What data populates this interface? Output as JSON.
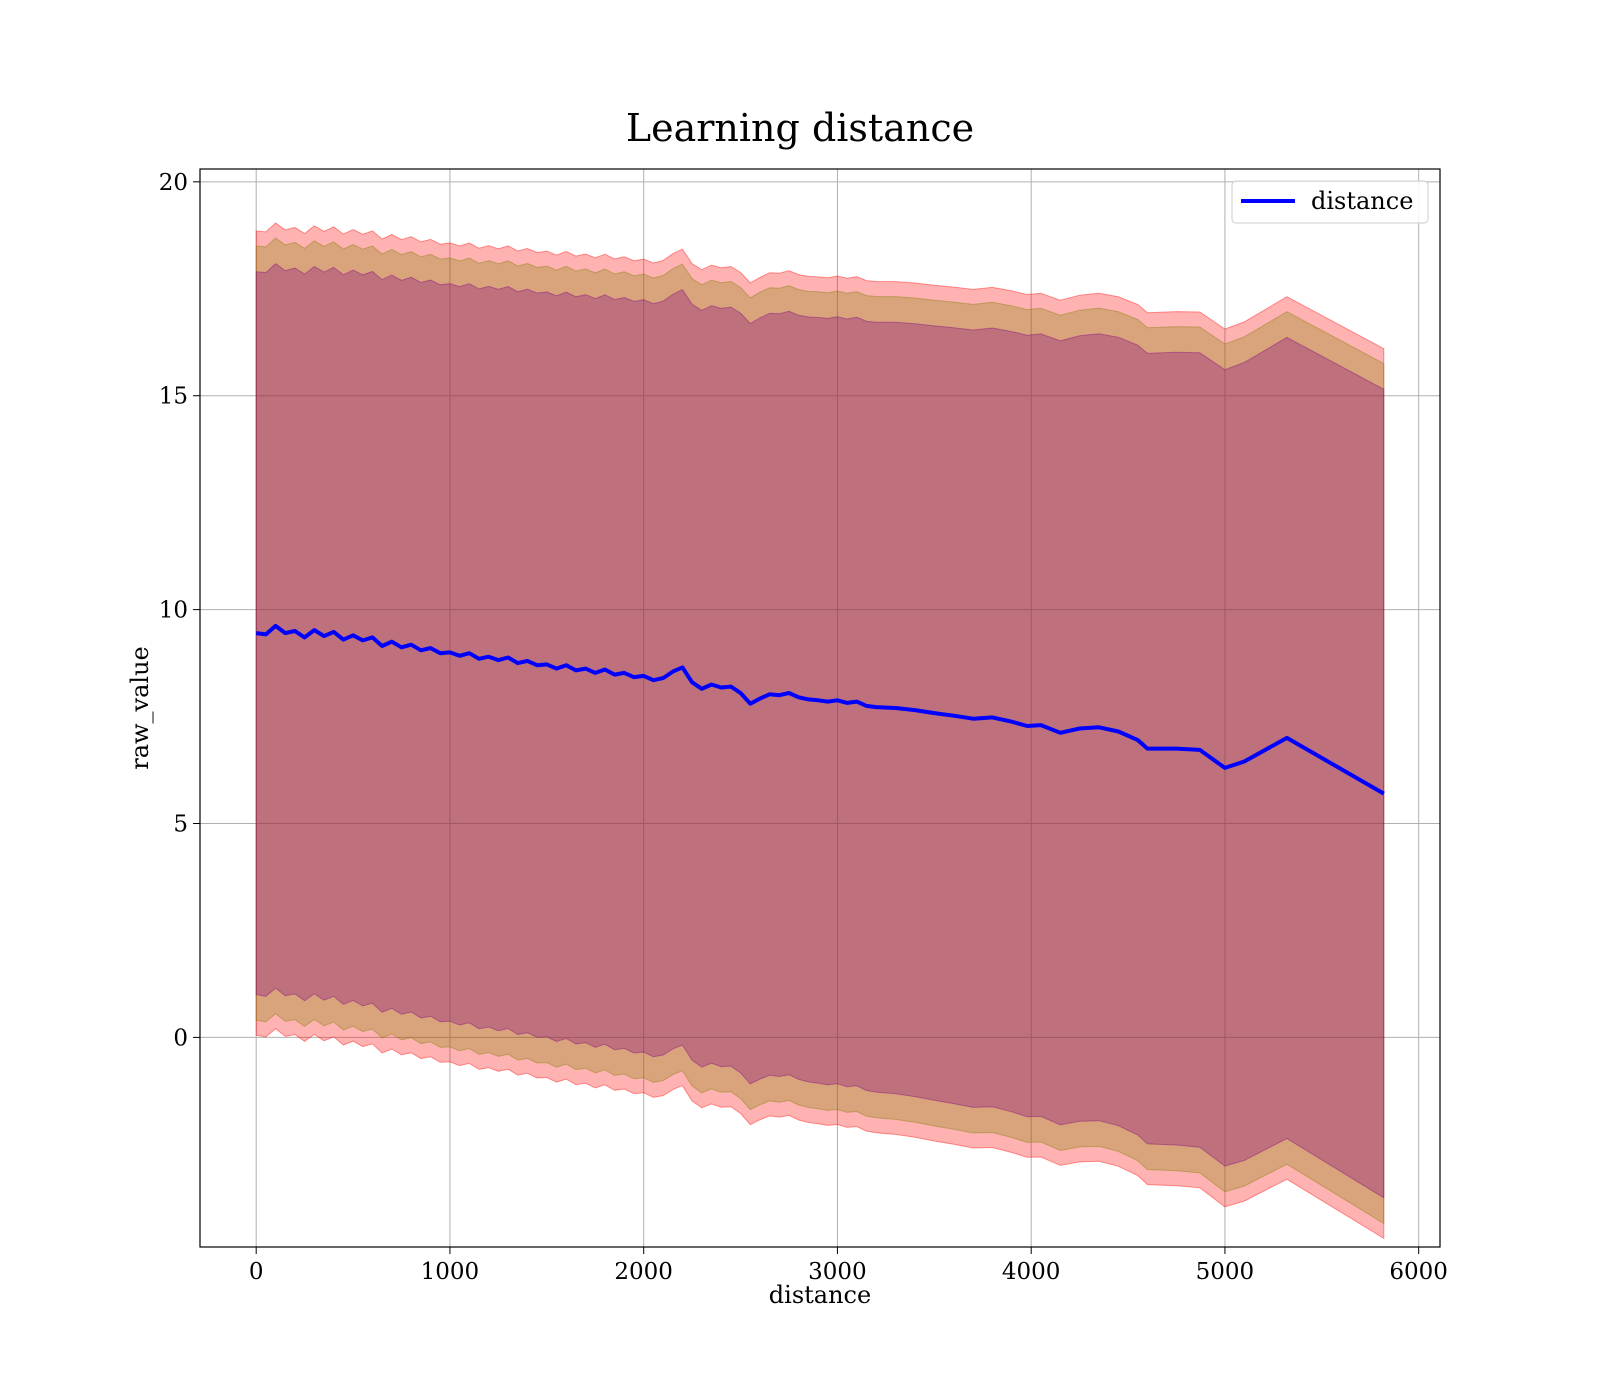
{
  "chart_data": {
    "type": "area",
    "title": "Learning distance",
    "xlabel": "distance",
    "ylabel": "raw_value",
    "xlim": [
      -290,
      6110
    ],
    "ylim": [
      -4.9,
      20.3
    ],
    "xticks": [
      0,
      1000,
      2000,
      3000,
      4000,
      5000,
      6000
    ],
    "yticks": [
      0,
      5,
      10,
      15,
      20
    ],
    "grid": true,
    "legend_position": "top-right",
    "series": [
      {
        "name": "distance",
        "color": "#0000ff",
        "points": [
          [
            0,
            9.45
          ],
          [
            50,
            9.42
          ],
          [
            100,
            9.62
          ],
          [
            150,
            9.45
          ],
          [
            200,
            9.5
          ],
          [
            250,
            9.35
          ],
          [
            300,
            9.52
          ],
          [
            350,
            9.38
          ],
          [
            400,
            9.48
          ],
          [
            450,
            9.3
          ],
          [
            500,
            9.4
          ],
          [
            550,
            9.28
          ],
          [
            600,
            9.35
          ],
          [
            650,
            9.15
          ],
          [
            700,
            9.25
          ],
          [
            750,
            9.12
          ],
          [
            800,
            9.18
          ],
          [
            850,
            9.05
          ],
          [
            900,
            9.1
          ],
          [
            950,
            8.98
          ],
          [
            1000,
            9.0
          ],
          [
            1050,
            8.92
          ],
          [
            1100,
            8.98
          ],
          [
            1150,
            8.85
          ],
          [
            1200,
            8.9
          ],
          [
            1250,
            8.82
          ],
          [
            1300,
            8.88
          ],
          [
            1350,
            8.75
          ],
          [
            1400,
            8.8
          ],
          [
            1450,
            8.7
          ],
          [
            1500,
            8.72
          ],
          [
            1550,
            8.62
          ],
          [
            1600,
            8.7
          ],
          [
            1650,
            8.58
          ],
          [
            1700,
            8.62
          ],
          [
            1750,
            8.52
          ],
          [
            1800,
            8.6
          ],
          [
            1850,
            8.48
          ],
          [
            1900,
            8.52
          ],
          [
            1950,
            8.42
          ],
          [
            2000,
            8.45
          ],
          [
            2050,
            8.35
          ],
          [
            2100,
            8.4
          ],
          [
            2150,
            8.55
          ],
          [
            2200,
            8.65
          ],
          [
            2250,
            8.3
          ],
          [
            2300,
            8.15
          ],
          [
            2350,
            8.25
          ],
          [
            2400,
            8.18
          ],
          [
            2450,
            8.2
          ],
          [
            2500,
            8.05
          ],
          [
            2550,
            7.8
          ],
          [
            2600,
            7.92
          ],
          [
            2650,
            8.02
          ],
          [
            2700,
            8.0
          ],
          [
            2750,
            8.05
          ],
          [
            2800,
            7.95
          ],
          [
            2850,
            7.9
          ],
          [
            2900,
            7.88
          ],
          [
            2950,
            7.85
          ],
          [
            3000,
            7.88
          ],
          [
            3050,
            7.82
          ],
          [
            3100,
            7.85
          ],
          [
            3150,
            7.75
          ],
          [
            3200,
            7.72
          ],
          [
            3300,
            7.7
          ],
          [
            3400,
            7.65
          ],
          [
            3500,
            7.58
          ],
          [
            3600,
            7.52
          ],
          [
            3700,
            7.45
          ],
          [
            3800,
            7.48
          ],
          [
            3900,
            7.38
          ],
          [
            3980,
            7.28
          ],
          [
            4050,
            7.3
          ],
          [
            4150,
            7.12
          ],
          [
            4250,
            7.22
          ],
          [
            4350,
            7.25
          ],
          [
            4450,
            7.15
          ],
          [
            4550,
            6.95
          ],
          [
            4600,
            6.75
          ],
          [
            4750,
            6.75
          ],
          [
            4870,
            6.72
          ],
          [
            5000,
            6.3
          ],
          [
            5100,
            6.45
          ],
          [
            5320,
            7.0
          ],
          [
            5820,
            5.7
          ]
        ]
      }
    ],
    "bands": [
      {
        "color": "#ff0000",
        "opacity": 0.3,
        "upper_offset": 9.4,
        "lower_offset": -9.4,
        "edge_growth": 0.1
      },
      {
        "color": "#808000",
        "opacity": 0.3,
        "upper_offset": 9.05,
        "lower_offset": -9.05,
        "edge_growth": 0.1
      },
      {
        "color": "#800080",
        "opacity": 0.3,
        "upper_offset": 8.45,
        "lower_offset": -8.45,
        "edge_growth": 0.1
      }
    ]
  }
}
